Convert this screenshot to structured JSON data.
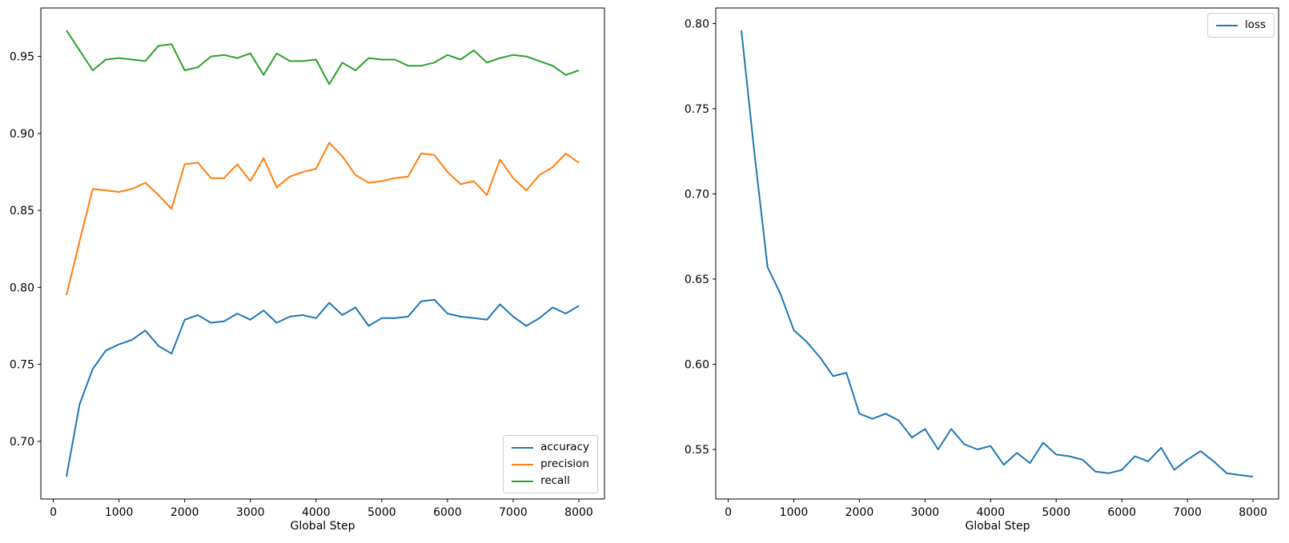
{
  "figure": {
    "background": "#ffffff"
  },
  "chart_data": [
    {
      "type": "line",
      "title": "",
      "xlabel": "Global Step",
      "ylabel": "",
      "grid": false,
      "legend_position": "lower right",
      "xlim": [
        -190,
        8390
      ],
      "ylim": [
        0.6625,
        0.9815
      ],
      "xticks": [
        0,
        1000,
        2000,
        3000,
        4000,
        5000,
        6000,
        7000,
        8000
      ],
      "yticks": [
        0.7,
        0.75,
        0.8,
        0.85,
        0.9,
        0.95
      ],
      "x": [
        200,
        400,
        600,
        800,
        1000,
        1200,
        1400,
        1600,
        1800,
        2000,
        2200,
        2400,
        2600,
        2800,
        3000,
        3200,
        3400,
        3600,
        3800,
        4000,
        4200,
        4400,
        4600,
        4800,
        5000,
        5200,
        5400,
        5600,
        5800,
        6000,
        6200,
        6400,
        6600,
        6800,
        7000,
        7200,
        7400,
        7600,
        7800,
        8000
      ],
      "series": [
        {
          "name": "accuracy",
          "color": "#1f77b4",
          "values": [
            0.677,
            0.724,
            0.747,
            0.759,
            0.763,
            0.766,
            0.772,
            0.762,
            0.757,
            0.779,
            0.782,
            0.777,
            0.778,
            0.783,
            0.779,
            0.785,
            0.777,
            0.781,
            0.782,
            0.78,
            0.79,
            0.782,
            0.787,
            0.775,
            0.78,
            0.78,
            0.781,
            0.791,
            0.792,
            0.783,
            0.781,
            0.78,
            0.779,
            0.789,
            0.781,
            0.775,
            0.78,
            0.787,
            0.783,
            0.788
          ]
        },
        {
          "name": "precision",
          "color": "#ff7f0e",
          "values": [
            0.795,
            0.83,
            0.864,
            0.863,
            0.862,
            0.864,
            0.868,
            0.86,
            0.851,
            0.88,
            0.881,
            0.871,
            0.871,
            0.88,
            0.869,
            0.884,
            0.865,
            0.872,
            0.875,
            0.877,
            0.894,
            0.885,
            0.873,
            0.868,
            0.869,
            0.871,
            0.872,
            0.887,
            0.886,
            0.875,
            0.867,
            0.869,
            0.86,
            0.883,
            0.871,
            0.863,
            0.873,
            0.878,
            0.887,
            0.881
          ]
        },
        {
          "name": "recall",
          "color": "#2ca02c",
          "values": [
            0.967,
            0.954,
            0.941,
            0.948,
            0.949,
            0.948,
            0.947,
            0.957,
            0.958,
            0.941,
            0.943,
            0.95,
            0.951,
            0.949,
            0.952,
            0.938,
            0.952,
            0.947,
            0.947,
            0.948,
            0.932,
            0.946,
            0.941,
            0.949,
            0.948,
            0.948,
            0.944,
            0.944,
            0.946,
            0.951,
            0.948,
            0.954,
            0.946,
            0.949,
            0.951,
            0.95,
            0.947,
            0.944,
            0.938,
            0.941
          ]
        }
      ]
    },
    {
      "type": "line",
      "title": "",
      "xlabel": "Global Step",
      "ylabel": "",
      "grid": false,
      "legend_position": "upper right",
      "xlim": [
        -190,
        8390
      ],
      "ylim": [
        0.5209,
        0.8091
      ],
      "xticks": [
        0,
        1000,
        2000,
        3000,
        4000,
        5000,
        6000,
        7000,
        8000
      ],
      "yticks": [
        0.55,
        0.6,
        0.65,
        0.7,
        0.75,
        0.8
      ],
      "x": [
        200,
        400,
        600,
        800,
        1000,
        1200,
        1400,
        1600,
        1800,
        2000,
        2200,
        2400,
        2600,
        2800,
        3000,
        3200,
        3400,
        3600,
        3800,
        4000,
        4200,
        4400,
        4600,
        4800,
        5000,
        5200,
        5400,
        5600,
        5800,
        6000,
        6200,
        6400,
        6600,
        6800,
        7000,
        7200,
        7400,
        7600,
        7800,
        8000
      ],
      "series": [
        {
          "name": "loss",
          "color": "#1f77b4",
          "values": [
            0.796,
            0.724,
            0.657,
            0.641,
            0.62,
            0.613,
            0.604,
            0.593,
            0.595,
            0.571,
            0.568,
            0.571,
            0.567,
            0.557,
            0.562,
            0.55,
            0.562,
            0.553,
            0.55,
            0.552,
            0.541,
            0.548,
            0.542,
            0.554,
            0.547,
            0.546,
            0.544,
            0.537,
            0.536,
            0.538,
            0.546,
            0.543,
            0.551,
            0.538,
            0.544,
            0.549,
            0.543,
            0.536,
            0.535,
            0.534
          ]
        }
      ]
    }
  ]
}
